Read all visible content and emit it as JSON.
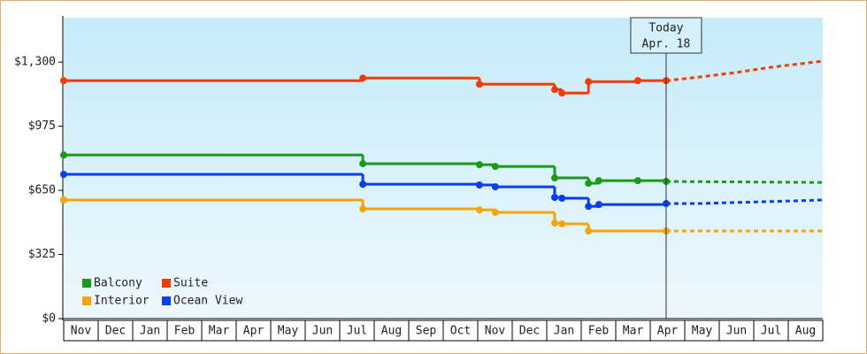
{
  "chart_data": {
    "type": "step",
    "categories": [
      "Nov",
      "Dec",
      "Jan",
      "Feb",
      "Mar",
      "Apr",
      "May",
      "Jun",
      "Jul",
      "Aug",
      "Sep",
      "Oct",
      "Nov",
      "Dec",
      "Jan",
      "Feb",
      "Mar",
      "Apr",
      "May",
      "Jun",
      "Jul",
      "Aug"
    ],
    "xlim": [
      0,
      22
    ],
    "ylim": [
      0,
      1525
    ],
    "yticks": [
      {
        "value": 0,
        "label": "$0"
      },
      {
        "value": 325,
        "label": "$325"
      },
      {
        "value": 650,
        "label": "$650"
      },
      {
        "value": 975,
        "label": "$975"
      },
      {
        "value": 1300,
        "label": "$1,300"
      }
    ],
    "series": [
      {
        "name": "Balcony",
        "color": "#1a9a1a",
        "x": [
          0,
          8.67,
          12.05,
          12.51,
          14.23,
          15.21,
          15.51,
          16.64,
          17.46
        ],
        "values": [
          829,
          785,
          780,
          771,
          713,
          686,
          699,
          699,
          695
        ],
        "forecast": {
          "x": [
            17.46,
            22
          ],
          "values": [
            695,
            690
          ]
        }
      },
      {
        "name": "Suite",
        "color": "#f03c0a",
        "x": [
          0,
          8.67,
          12.05,
          14.23,
          14.44,
          15.21,
          16.64,
          17.46
        ],
        "values": [
          1206,
          1219,
          1188,
          1161,
          1143,
          1201,
          1206,
          1206
        ],
        "forecast": {
          "x": [
            17.46,
            18.41,
            19.44,
            20.46,
            22
          ],
          "values": [
            1206,
            1224,
            1246,
            1273,
            1305
          ]
        }
      },
      {
        "name": "Interior",
        "color": "#f5a50a",
        "x": [
          0,
          8.67,
          12.05,
          12.51,
          14.23,
          14.44,
          15.21,
          17.46
        ],
        "values": [
          601,
          556,
          551,
          538,
          484,
          480,
          444,
          444
        ],
        "forecast": {
          "x": [
            17.46,
            22
          ],
          "values": [
            444,
            444
          ]
        }
      },
      {
        "name": "Ocean View",
        "color": "#0a3cf0",
        "x": [
          0,
          8.67,
          12.05,
          12.51,
          14.23,
          14.44,
          15.21,
          15.51,
          17.46
        ],
        "values": [
          731,
          681,
          677,
          668,
          614,
          610,
          569,
          578,
          583
        ],
        "forecast": {
          "x": [
            17.46,
            18.41,
            20.21,
            22
          ],
          "values": [
            583,
            583,
            592,
            601
          ]
        }
      }
    ],
    "annotation": {
      "x": 17.46,
      "lines": [
        "Today",
        "Apr. 18"
      ]
    },
    "legend": "lower-left"
  }
}
